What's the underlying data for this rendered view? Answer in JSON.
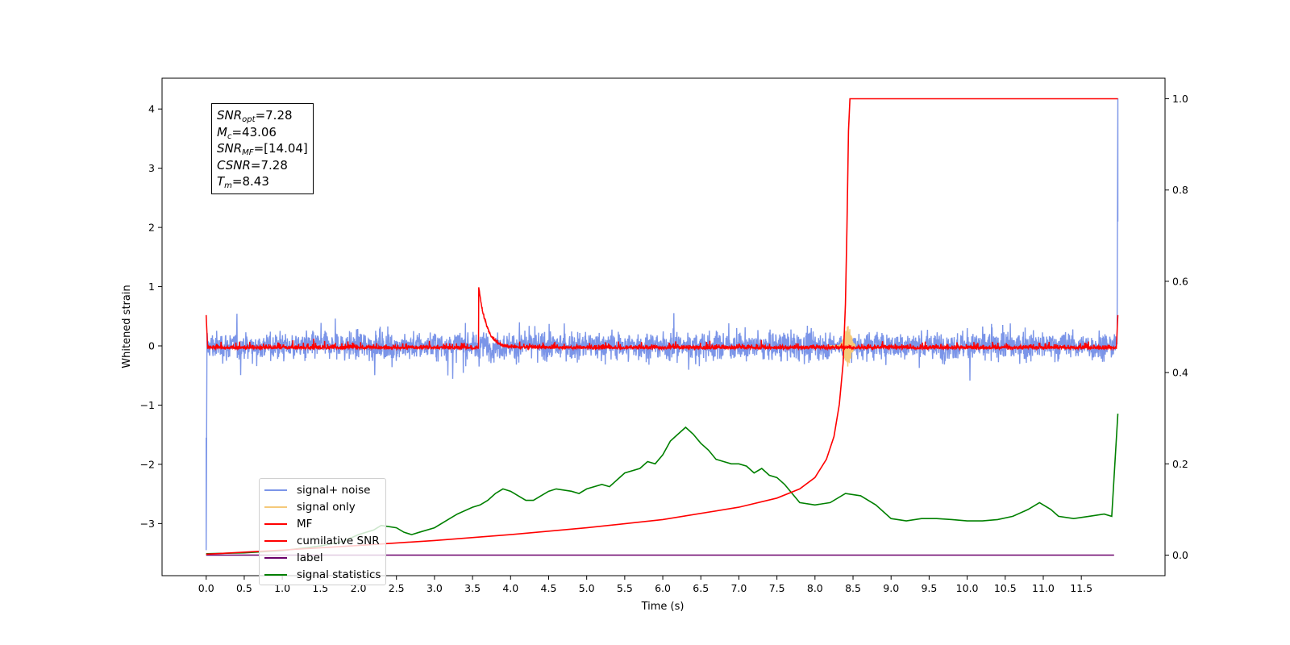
{
  "chart_data": {
    "type": "line",
    "xlabel": "Time (s)",
    "ylabel": "Whitened strain",
    "xlim": [
      -0.58,
      12.6
    ],
    "ylim": [
      -3.88,
      4.52
    ],
    "y2lim": [
      -0.045,
      1.045
    ],
    "x_ticks": [
      "0.0",
      "0.5",
      "1.0",
      "1.5",
      "2.0",
      "2.5",
      "3.0",
      "3.5",
      "4.0",
      "4.5",
      "5.0",
      "5.5",
      "6.0",
      "6.5",
      "7.0",
      "7.5",
      "8.0",
      "8.5",
      "9.0",
      "9.5",
      "10.0",
      "10.5",
      "11.0",
      "11.5"
    ],
    "y_ticks": [
      "−3",
      "−2",
      "−1",
      "0",
      "1",
      "2",
      "3",
      "4"
    ],
    "y2_ticks": [
      "0.0",
      "0.2",
      "0.4",
      "0.6",
      "0.8",
      "1.0"
    ],
    "series": [
      {
        "name": "signal+ noise",
        "color": "#7b95e8",
        "axis": "left",
        "kind": "noise",
        "amplitude": 0.55,
        "spikes": [
          [
            0.0,
            -3.45
          ],
          [
            11.98,
            4.18
          ]
        ]
      },
      {
        "name": "signal only",
        "color": "#f5c97a",
        "axis": "left",
        "kind": "chirp",
        "merger_time": 8.43,
        "amplitude": 0.35
      },
      {
        "name": "MF",
        "color": "#ff0000",
        "axis": "left",
        "kind": "mf",
        "peak_time": 3.58,
        "peak_value": 1.0
      },
      {
        "name": "cumilative SNR",
        "color": "#ff0000",
        "axis": "right",
        "x": [
          0.0,
          1.0,
          2.0,
          3.0,
          4.0,
          5.0,
          6.0,
          7.0,
          7.5,
          7.8,
          8.0,
          8.15,
          8.25,
          8.32,
          8.37,
          8.4,
          8.42,
          8.44,
          8.46,
          11.98
        ],
        "y": [
          0.002,
          0.011,
          0.021,
          0.032,
          0.045,
          0.06,
          0.078,
          0.105,
          0.125,
          0.145,
          0.17,
          0.21,
          0.26,
          0.33,
          0.42,
          0.55,
          0.72,
          0.93,
          1.0,
          1.0
        ]
      },
      {
        "name": "label",
        "color": "#6a006a",
        "axis": "right",
        "x": [
          0.0,
          11.93
        ],
        "y": [
          0.0,
          0.0
        ]
      },
      {
        "name": "signal statistics",
        "color": "#008000",
        "axis": "right",
        "x": [
          0.0,
          0.5,
          1.0,
          1.5,
          1.8,
          2.0,
          2.2,
          2.3,
          2.5,
          2.6,
          2.7,
          2.8,
          3.0,
          3.2,
          3.3,
          3.5,
          3.6,
          3.7,
          3.8,
          3.9,
          4.0,
          4.1,
          4.2,
          4.3,
          4.4,
          4.5,
          4.6,
          4.8,
          4.9,
          5.0,
          5.2,
          5.3,
          5.4,
          5.5,
          5.7,
          5.8,
          5.9,
          6.0,
          6.1,
          6.2,
          6.3,
          6.4,
          6.5,
          6.6,
          6.7,
          6.8,
          6.9,
          7.0,
          7.1,
          7.2,
          7.3,
          7.4,
          7.5,
          7.6,
          7.8,
          8.0,
          8.2,
          8.4,
          8.6,
          8.8,
          9.0,
          9.2,
          9.4,
          9.6,
          9.8,
          10.0,
          10.2,
          10.4,
          10.6,
          10.8,
          10.95,
          11.1,
          11.2,
          11.4,
          11.6,
          11.8,
          11.9,
          11.98
        ],
        "y": [
          0.003,
          0.005,
          0.01,
          0.02,
          0.03,
          0.045,
          0.055,
          0.065,
          0.06,
          0.05,
          0.045,
          0.05,
          0.06,
          0.08,
          0.09,
          0.105,
          0.11,
          0.12,
          0.135,
          0.145,
          0.14,
          0.13,
          0.12,
          0.12,
          0.13,
          0.14,
          0.145,
          0.14,
          0.135,
          0.145,
          0.155,
          0.15,
          0.165,
          0.18,
          0.19,
          0.205,
          0.2,
          0.22,
          0.25,
          0.265,
          0.28,
          0.265,
          0.245,
          0.23,
          0.21,
          0.205,
          0.2,
          0.2,
          0.195,
          0.18,
          0.19,
          0.175,
          0.17,
          0.155,
          0.115,
          0.11,
          0.115,
          0.135,
          0.13,
          0.11,
          0.08,
          0.075,
          0.08,
          0.08,
          0.078,
          0.075,
          0.075,
          0.078,
          0.085,
          0.1,
          0.115,
          0.1,
          0.085,
          0.08,
          0.085,
          0.09,
          0.085,
          0.31
        ]
      }
    ]
  },
  "info_box": {
    "snr_opt": {
      "sym": "SNR",
      "sub": "opt",
      "value": "=7.28"
    },
    "mc": {
      "sym": "M",
      "sub": "c",
      "value": "=43.06"
    },
    "snr_mf": {
      "sym": "SNR",
      "sub": "MF",
      "value": "=[14.04]"
    },
    "csnr": {
      "sym": "CSNR",
      "value": "=7.28"
    },
    "tm": {
      "sym": "T",
      "sub": "m",
      "value": "=8.43"
    }
  },
  "legend": [
    {
      "label": "signal+ noise",
      "color": "#7b95e8"
    },
    {
      "label": "signal only",
      "color": "#f5c97a"
    },
    {
      "label": "MF",
      "color": "#ff0000"
    },
    {
      "label": "cumilative SNR",
      "color": "#ff0000"
    },
    {
      "label": "label",
      "color": "#6a006a"
    },
    {
      "label": "signal statistics",
      "color": "#008000"
    }
  ]
}
